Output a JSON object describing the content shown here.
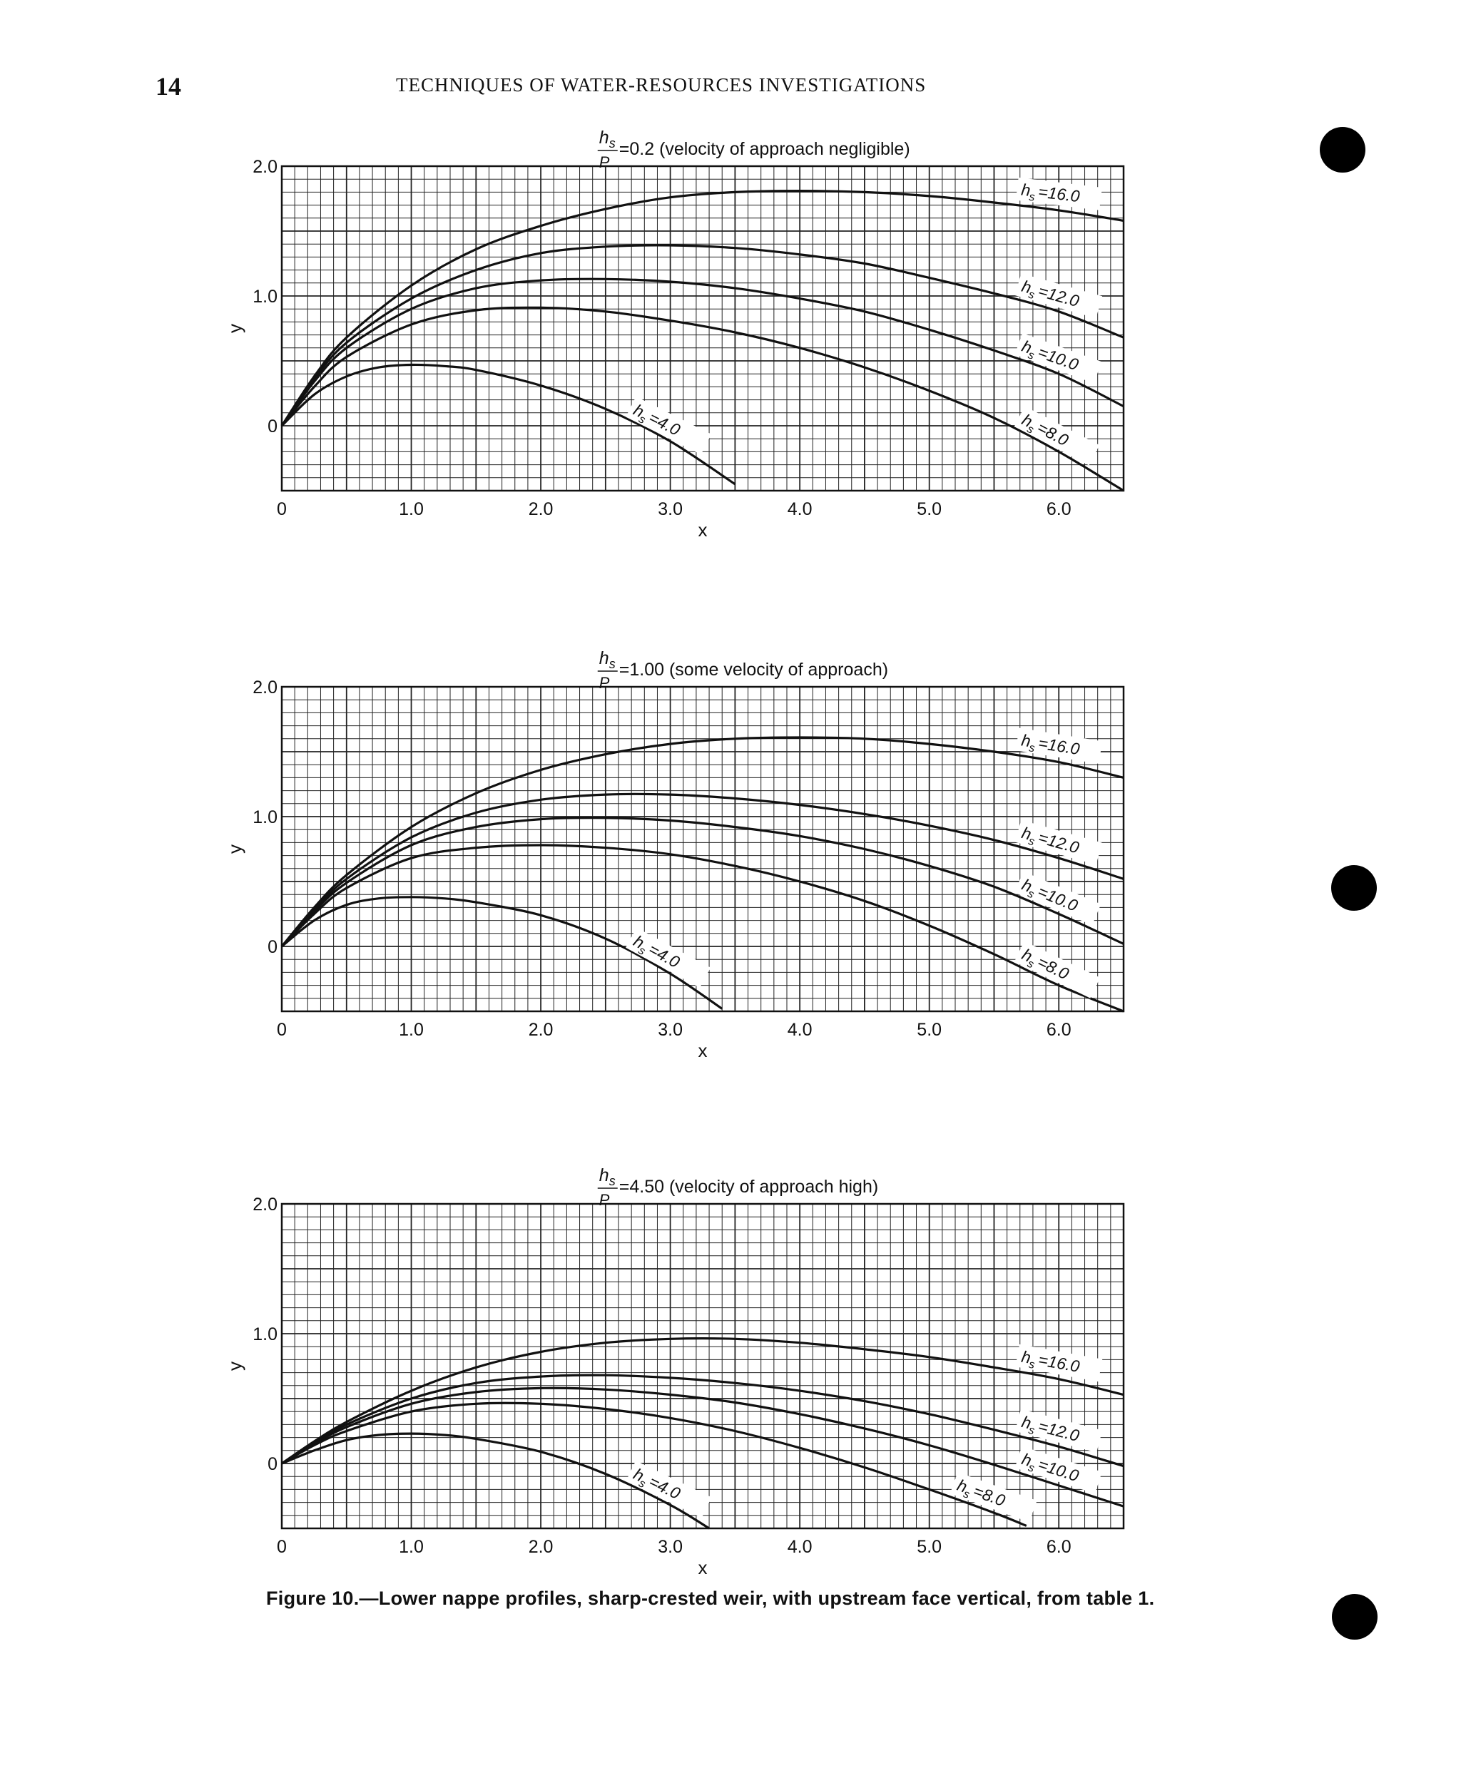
{
  "page": {
    "number": "14",
    "header": "TECHNIQUES OF WATER-RESOURCES INVESTIGATIONS",
    "caption": "Figure 10.—Lower nappe profiles, sharp-crested weir, with upstream face vertical, from table 1."
  },
  "chart_data": [
    {
      "type": "line",
      "title_ratio": "h",
      "title_sub": "s",
      "title_den": "P",
      "title_rest": "=0.2 (velocity of approach negligible)",
      "xlabel": "x",
      "ylabel": "y",
      "xlim": [
        0,
        6.5
      ],
      "ylim": [
        -0.5,
        2.0
      ],
      "x_ticks": [
        "0",
        "1.0",
        "2.0",
        "3.0",
        "4.0",
        "5.0",
        "6.0"
      ],
      "y_ticks": [
        "0",
        "1.0",
        "2.0"
      ],
      "grid": true,
      "series": [
        {
          "name": "hs=16.0",
          "label_prefix": "h",
          "label_sub": "s",
          "label_value": "=16.0",
          "x": [
            0,
            0.25,
            0.5,
            1.0,
            1.5,
            2.0,
            2.5,
            3.0,
            3.5,
            4.0,
            4.5,
            5.0,
            5.5,
            6.0,
            6.5
          ],
          "y": [
            0,
            0.38,
            0.68,
            1.08,
            1.36,
            1.54,
            1.67,
            1.76,
            1.8,
            1.81,
            1.8,
            1.77,
            1.72,
            1.66,
            1.58
          ]
        },
        {
          "name": "hs=12.0",
          "label_prefix": "h",
          "label_sub": "s",
          "label_value": "=12.0",
          "x": [
            0,
            0.25,
            0.5,
            1.0,
            1.5,
            2.0,
            2.5,
            3.0,
            3.5,
            4.0,
            4.5,
            5.0,
            5.5,
            6.0,
            6.5
          ],
          "y": [
            0,
            0.36,
            0.64,
            0.98,
            1.2,
            1.33,
            1.38,
            1.39,
            1.37,
            1.32,
            1.25,
            1.14,
            1.02,
            0.88,
            0.68
          ]
        },
        {
          "name": "hs=10.0",
          "label_prefix": "h",
          "label_sub": "s",
          "label_value": "=10.0",
          "x": [
            0,
            0.25,
            0.5,
            1.0,
            1.5,
            2.0,
            2.5,
            3.0,
            3.5,
            4.0,
            4.5,
            5.0,
            5.5,
            6.0,
            6.5
          ],
          "y": [
            0,
            0.34,
            0.6,
            0.9,
            1.06,
            1.12,
            1.13,
            1.11,
            1.06,
            0.98,
            0.88,
            0.74,
            0.58,
            0.4,
            0.15
          ]
        },
        {
          "name": "hs=8.0",
          "label_prefix": "h",
          "label_sub": "s",
          "label_value": "=8.0",
          "x": [
            0,
            0.25,
            0.5,
            1.0,
            1.5,
            2.0,
            2.5,
            3.0,
            3.5,
            4.0,
            4.5,
            5.0,
            5.5,
            6.0,
            6.5
          ],
          "y": [
            0,
            0.3,
            0.53,
            0.78,
            0.89,
            0.91,
            0.88,
            0.81,
            0.72,
            0.6,
            0.45,
            0.27,
            0.06,
            -0.2,
            -0.5
          ]
        },
        {
          "name": "hs=4.0",
          "label_prefix": "h",
          "label_sub": "s",
          "label_value": "=4.0",
          "x": [
            0,
            0.25,
            0.5,
            0.75,
            1.0,
            1.25,
            1.5,
            2.0,
            2.5,
            3.0,
            3.5
          ],
          "y": [
            0,
            0.24,
            0.38,
            0.45,
            0.47,
            0.46,
            0.43,
            0.31,
            0.13,
            -0.12,
            -0.45
          ]
        }
      ]
    },
    {
      "type": "line",
      "title_ratio": "h",
      "title_sub": "s",
      "title_den": "P",
      "title_rest": "=1.00 (some velocity of approach)",
      "xlabel": "x",
      "ylabel": "y",
      "xlim": [
        0,
        6.5
      ],
      "ylim": [
        -0.5,
        2.0
      ],
      "x_ticks": [
        "0",
        "1.0",
        "2.0",
        "3.0",
        "4.0",
        "5.0",
        "6.0"
      ],
      "y_ticks": [
        "0",
        "1.0",
        "2.0"
      ],
      "grid": true,
      "series": [
        {
          "name": "hs=16.0",
          "label_prefix": "h",
          "label_sub": "s",
          "label_value": "=16.0",
          "x": [
            0,
            0.25,
            0.5,
            1.0,
            1.5,
            2.0,
            2.5,
            3.0,
            3.5,
            4.0,
            4.5,
            5.0,
            5.5,
            6.0,
            6.5
          ],
          "y": [
            0,
            0.3,
            0.55,
            0.92,
            1.18,
            1.36,
            1.48,
            1.56,
            1.6,
            1.61,
            1.6,
            1.56,
            1.5,
            1.42,
            1.3
          ]
        },
        {
          "name": "hs=12.0",
          "label_prefix": "h",
          "label_sub": "s",
          "label_value": "=12.0",
          "x": [
            0,
            0.25,
            0.5,
            1.0,
            1.5,
            2.0,
            2.5,
            3.0,
            3.5,
            4.0,
            4.5,
            5.0,
            5.5,
            6.0,
            6.5
          ],
          "y": [
            0,
            0.28,
            0.52,
            0.84,
            1.03,
            1.13,
            1.17,
            1.17,
            1.14,
            1.09,
            1.02,
            0.93,
            0.82,
            0.68,
            0.52
          ]
        },
        {
          "name": "hs=10.0",
          "label_prefix": "h",
          "label_sub": "s",
          "label_value": "=10.0",
          "x": [
            0,
            0.25,
            0.5,
            1.0,
            1.5,
            2.0,
            2.5,
            3.0,
            3.5,
            4.0,
            4.5,
            5.0,
            5.5,
            6.0,
            6.5
          ],
          "y": [
            0,
            0.27,
            0.49,
            0.78,
            0.92,
            0.98,
            0.99,
            0.97,
            0.92,
            0.85,
            0.75,
            0.62,
            0.46,
            0.25,
            0.02
          ]
        },
        {
          "name": "hs=8.0",
          "label_prefix": "h",
          "label_sub": "s",
          "label_value": "=8.0",
          "x": [
            0,
            0.25,
            0.5,
            1.0,
            1.5,
            2.0,
            2.5,
            3.0,
            3.5,
            4.0,
            4.5,
            5.0,
            5.5,
            6.0,
            6.5
          ],
          "y": [
            0,
            0.25,
            0.45,
            0.68,
            0.76,
            0.78,
            0.76,
            0.71,
            0.62,
            0.5,
            0.35,
            0.16,
            -0.06,
            -0.3,
            -0.5
          ]
        },
        {
          "name": "hs=4.0",
          "label_prefix": "h",
          "label_sub": "s",
          "label_value": "=4.0",
          "x": [
            0,
            0.25,
            0.5,
            0.75,
            1.0,
            1.25,
            1.5,
            2.0,
            2.5,
            3.0,
            3.4
          ],
          "y": [
            0,
            0.2,
            0.32,
            0.37,
            0.38,
            0.37,
            0.34,
            0.24,
            0.06,
            -0.21,
            -0.48
          ]
        }
      ]
    },
    {
      "type": "line",
      "title_ratio": "h",
      "title_sub": "s",
      "title_den": "P",
      "title_rest": "=4.50 (velocity of approach high)",
      "xlabel": "x",
      "ylabel": "y",
      "xlim": [
        0,
        6.5
      ],
      "ylim": [
        -0.5,
        2.0
      ],
      "x_ticks": [
        "0",
        "1.0",
        "2.0",
        "3.0",
        "4.0",
        "5.0",
        "6.0"
      ],
      "y_ticks": [
        "0",
        "1.0",
        "2.0"
      ],
      "grid": true,
      "series": [
        {
          "name": "hs=16.0",
          "label_prefix": "h",
          "label_sub": "s",
          "label_value": "=16.0",
          "x": [
            0,
            0.25,
            0.5,
            1.0,
            1.5,
            2.0,
            2.5,
            3.0,
            3.5,
            4.0,
            4.5,
            5.0,
            5.5,
            6.0,
            6.5
          ],
          "y": [
            0,
            0.17,
            0.32,
            0.56,
            0.74,
            0.86,
            0.93,
            0.96,
            0.96,
            0.93,
            0.88,
            0.82,
            0.74,
            0.65,
            0.53
          ]
        },
        {
          "name": "hs=12.0",
          "label_prefix": "h",
          "label_sub": "s",
          "label_value": "=12.0",
          "x": [
            0,
            0.25,
            0.5,
            1.0,
            1.5,
            2.0,
            2.5,
            3.0,
            3.5,
            4.0,
            4.5,
            5.0,
            5.5,
            6.0,
            6.5
          ],
          "y": [
            0,
            0.16,
            0.3,
            0.5,
            0.62,
            0.67,
            0.68,
            0.66,
            0.62,
            0.56,
            0.48,
            0.38,
            0.26,
            0.13,
            -0.02
          ]
        },
        {
          "name": "hs=10.0",
          "label_prefix": "h",
          "label_sub": "s",
          "label_value": "=10.0",
          "x": [
            0,
            0.25,
            0.5,
            1.0,
            1.5,
            2.0,
            2.5,
            3.0,
            3.5,
            4.0,
            4.5,
            5.0,
            5.5,
            6.0,
            6.5
          ],
          "y": [
            0,
            0.15,
            0.28,
            0.46,
            0.55,
            0.58,
            0.57,
            0.53,
            0.47,
            0.38,
            0.27,
            0.14,
            -0.01,
            -0.17,
            -0.33
          ]
        },
        {
          "name": "hs=8.0",
          "label_prefix": "h",
          "label_sub": "s",
          "label_value": "=8.0",
          "x": [
            0,
            0.25,
            0.5,
            1.0,
            1.5,
            2.0,
            2.5,
            3.0,
            3.5,
            4.0,
            4.5,
            5.0,
            5.5,
            5.75
          ],
          "y": [
            0,
            0.14,
            0.25,
            0.4,
            0.46,
            0.46,
            0.42,
            0.35,
            0.25,
            0.12,
            -0.03,
            -0.2,
            -0.38,
            -0.48
          ]
        },
        {
          "name": "hs=4.0",
          "label_prefix": "h",
          "label_sub": "s",
          "label_value": "=4.0",
          "x": [
            0,
            0.25,
            0.5,
            0.75,
            1.0,
            1.25,
            1.5,
            2.0,
            2.5,
            3.0,
            3.3
          ],
          "y": [
            0,
            0.1,
            0.18,
            0.22,
            0.23,
            0.22,
            0.19,
            0.09,
            -0.08,
            -0.32,
            -0.5
          ]
        }
      ]
    }
  ]
}
